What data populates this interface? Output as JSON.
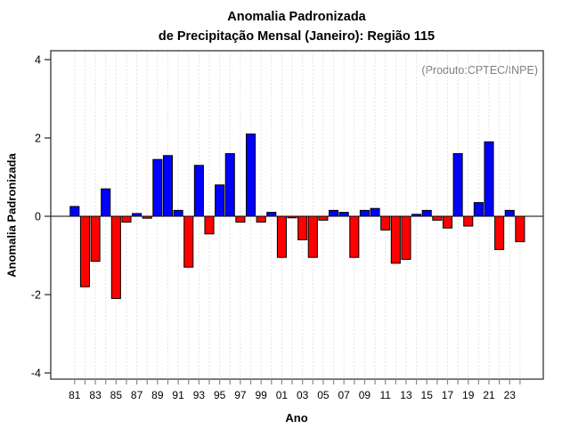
{
  "title": {
    "line1": "Anomalia Padronizada",
    "line2": "de Precipitação Mensal (Janeiro): Região 115"
  },
  "annotation": "(Produto:CPTEC/INPE)",
  "chart_data": {
    "type": "bar",
    "title": "Anomalia Padronizada de Precipitação Mensal (Janeiro): Região 115",
    "xlabel": "Ano",
    "ylabel": "Anomalia Padronizada",
    "ylim": [
      -4,
      4
    ],
    "y_ticks": [
      4,
      2,
      0,
      -2,
      -4
    ],
    "x_tick_labels": [
      "81",
      "83",
      "85",
      "87",
      "89",
      "91",
      "93",
      "95",
      "97",
      "99",
      "01",
      "03",
      "05",
      "07",
      "09",
      "11",
      "13",
      "15",
      "17",
      "19",
      "21",
      "23"
    ],
    "categories": [
      "81",
      "82",
      "83",
      "84",
      "85",
      "86",
      "87",
      "88",
      "89",
      "90",
      "91",
      "92",
      "93",
      "94",
      "95",
      "96",
      "97",
      "98",
      "99",
      "00",
      "01",
      "02",
      "03",
      "04",
      "05",
      "06",
      "07",
      "08",
      "09",
      "10",
      "11",
      "12",
      "13",
      "14",
      "15",
      "16",
      "17",
      "18",
      "19",
      "20",
      "21",
      "22",
      "23",
      "24"
    ],
    "values": [
      0.25,
      -1.8,
      -1.15,
      0.7,
      -2.1,
      -0.15,
      0.07,
      -0.05,
      1.45,
      1.55,
      0.15,
      -1.3,
      1.3,
      -0.45,
      0.8,
      1.6,
      -0.15,
      2.1,
      -0.15,
      0.1,
      -1.05,
      -0.04,
      -0.6,
      -1.05,
      -0.1,
      0.15,
      0.1,
      -1.05,
      0.15,
      0.2,
      -0.35,
      -1.2,
      -1.1,
      0.05,
      0.15,
      -0.1,
      -0.3,
      1.6,
      -0.25,
      0.35,
      1.9,
      -0.85,
      0.15,
      -0.65
    ],
    "grid": "vertical-dashed-per-year",
    "legend": "none",
    "colors": {
      "positive_bar": "#0000FF",
      "negative_bar": "#FF0000",
      "bar_border": "#000000",
      "gridline": "#DCDCDC",
      "frame": "#262626",
      "x_tick": "#8A8A8A",
      "annotation": "#7F7F7F"
    }
  }
}
